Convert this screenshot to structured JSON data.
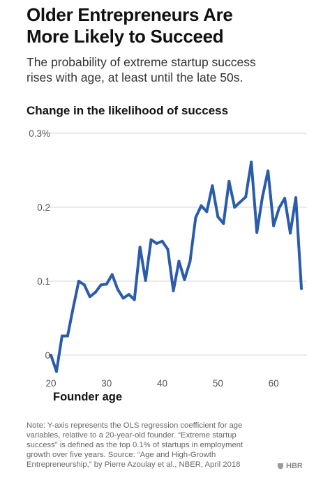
{
  "header": {
    "title_line1": "Older Entrepreneurs Are",
    "title_line2": "More Likely to Succeed",
    "subtitle_line1": "The probability of extreme startup success",
    "subtitle_line2": "rises with age, at least until the late 50s."
  },
  "chart_data": {
    "type": "line",
    "title": "Change in the likelihood of success",
    "xlabel": "Founder age",
    "ylabel": "",
    "xlim": [
      19,
      66
    ],
    "ylim": [
      -0.3,
      3.0
    ],
    "x_ticks": [
      20,
      30,
      40,
      50,
      60
    ],
    "y_ticks": [
      {
        "value": 0,
        "label": "0"
      },
      {
        "value": 1,
        "label": "0.1"
      },
      {
        "value": 2,
        "label": "0.2"
      },
      {
        "value": 3,
        "label": "0.3%"
      }
    ],
    "grid": "horizontal",
    "color": "#2a5cab",
    "x": [
      20,
      21,
      22,
      23,
      24,
      25,
      26,
      27,
      28,
      29,
      30,
      31,
      32,
      33,
      34,
      35,
      36,
      37,
      38,
      39,
      40,
      41,
      42,
      43,
      44,
      45,
      46,
      47,
      48,
      49,
      50,
      51,
      52,
      53,
      54,
      55,
      56,
      57,
      58,
      59,
      60,
      61,
      62,
      63,
      64,
      65
    ],
    "values": [
      0.0,
      -0.22,
      0.26,
      0.26,
      0.64,
      1.0,
      0.95,
      0.79,
      0.85,
      0.95,
      0.96,
      1.09,
      0.89,
      0.77,
      0.82,
      0.75,
      1.46,
      1.01,
      1.56,
      1.51,
      1.54,
      1.43,
      0.87,
      1.27,
      1.02,
      1.27,
      1.86,
      2.02,
      1.94,
      2.29,
      1.87,
      1.78,
      2.35,
      2.0,
      2.07,
      2.14,
      2.61,
      1.66,
      2.14,
      2.49,
      1.75,
      1.99,
      2.12,
      1.65,
      2.13,
      0.9
    ]
  },
  "footer": {
    "note_line1": "Note: Y-axis represents the OLS regression coefficient for age",
    "note_line2": "variables, relative to a 20-year-old founder. “Extreme startup",
    "note_line3": "success” is defined as the top 0.1% of startups in employment",
    "note_line4": "growth over five years. Source: “Age and High-Growth",
    "note_line5": "Entrepreneurship,” by Pierre Azoulay et al., NBER, April 2018",
    "logo_text": "HBR"
  }
}
